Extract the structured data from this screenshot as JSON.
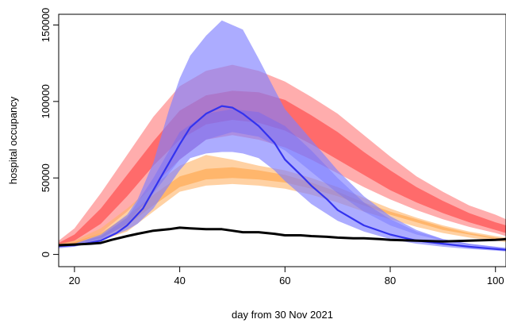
{
  "chart_data": {
    "type": "area",
    "title": "",
    "xlabel": "day from 30 Nov 2021",
    "ylabel": "hospital occupancy",
    "xlim": [
      17,
      102
    ],
    "ylim": [
      -8000,
      157000
    ],
    "xticks": [
      20,
      40,
      60,
      80,
      100
    ],
    "yticks": [
      0,
      50000,
      100000,
      150000
    ],
    "ytick_labels": [
      "0",
      "50000",
      "100000",
      "150000"
    ],
    "grid": false,
    "legend": "none",
    "series": [
      {
        "kind": "band",
        "color": "#ff9999",
        "opacity": 0.8,
        "x": [
          17,
          20,
          25,
          30,
          35,
          40,
          45,
          50,
          55,
          60,
          65,
          70,
          75,
          80,
          85,
          90,
          95,
          100,
          102
        ],
        "lower": [
          5000,
          7000,
          14000,
          28000,
          45000,
          62000,
          75000,
          78000,
          75000,
          70000,
          62000,
          53000,
          44000,
          36000,
          29000,
          23000,
          18000,
          14000,
          12000
        ],
        "upper": [
          9000,
          17000,
          40000,
          65000,
          90000,
          110000,
          120000,
          124000,
          120000,
          113000,
          103000,
          92000,
          78000,
          64000,
          51000,
          41000,
          32000,
          26000,
          23000
        ]
      },
      {
        "kind": "band",
        "color": "#ff5555",
        "opacity": 0.75,
        "x": [
          17,
          20,
          25,
          30,
          35,
          40,
          45,
          50,
          55,
          60,
          65,
          70,
          75,
          80,
          85,
          90,
          95,
          100,
          102
        ],
        "lower": [
          6000,
          9000,
          20000,
          38000,
          58000,
          75000,
          85000,
          88000,
          86000,
          81000,
          72000,
          62000,
          52000,
          42000,
          34000,
          27000,
          21000,
          16000,
          14000
        ],
        "upper": [
          7500,
          13000,
          30000,
          52000,
          74000,
          94000,
          104000,
          107000,
          106000,
          101000,
          91000,
          80000,
          67000,
          55000,
          44000,
          35000,
          27000,
          21000,
          19000
        ]
      },
      {
        "kind": "band",
        "color": "#ffb366",
        "opacity": 0.6,
        "x": [
          17,
          20,
          25,
          30,
          35,
          40,
          45,
          50,
          55,
          60,
          65,
          70,
          75,
          80,
          85,
          90,
          95,
          100,
          102
        ],
        "lower": [
          5000,
          6000,
          9000,
          15000,
          28000,
          41000,
          45000,
          46000,
          45000,
          43000,
          39000,
          34000,
          28000,
          23000,
          18000,
          14000,
          11000,
          9000,
          8000
        ],
        "upper": [
          7000,
          9000,
          17000,
          30000,
          45000,
          58000,
          65000,
          62000,
          58000,
          55000,
          50000,
          44000,
          37000,
          30000,
          24000,
          19000,
          15000,
          12000,
          11000
        ]
      },
      {
        "kind": "band",
        "color": "#ffa040",
        "opacity": 0.55,
        "x": [
          17,
          20,
          25,
          30,
          35,
          40,
          45,
          50,
          55,
          60,
          65,
          70,
          75,
          80,
          85,
          90,
          95,
          100,
          102
        ],
        "lower": [
          5500,
          7000,
          11000,
          19000,
          32000,
          44000,
          49000,
          50000,
          49000,
          47000,
          43000,
          38000,
          32000,
          26000,
          21000,
          16000,
          13000,
          10000,
          9000
        ],
        "upper": [
          6500,
          8000,
          14000,
          25000,
          39000,
          51000,
          56000,
          57000,
          55000,
          52000,
          47000,
          41000,
          34000,
          28000,
          23000,
          18000,
          14000,
          11000,
          10000
        ]
      },
      {
        "kind": "band",
        "color": "#8080ff",
        "opacity": 0.65,
        "x": [
          17,
          20,
          25,
          30,
          32,
          35,
          38,
          40,
          42,
          45,
          48,
          50,
          52,
          55,
          58,
          60,
          65,
          70,
          75,
          80,
          85,
          90,
          95,
          100,
          102
        ],
        "lower": [
          4000,
          5000,
          9000,
          16000,
          20000,
          30000,
          45000,
          55000,
          63000,
          66000,
          67000,
          67000,
          66000,
          63000,
          55000,
          48000,
          33000,
          22000,
          15000,
          10000,
          7000,
          5000,
          3500,
          2500,
          2000
        ],
        "upper": [
          6000,
          7000,
          13000,
          26000,
          36000,
          60000,
          95000,
          115000,
          130000,
          143000,
          153000,
          150000,
          147000,
          128000,
          108000,
          95000,
          75000,
          55000,
          38000,
          25000,
          16000,
          10000,
          7000,
          5000,
          4000
        ]
      },
      {
        "kind": "band",
        "color": "#6060ff",
        "opacity": 0.35,
        "x": [
          17,
          20,
          25,
          30,
          35,
          40,
          45,
          50,
          55,
          60,
          65,
          70,
          75,
          80,
          85,
          90,
          95,
          100,
          102
        ],
        "lower": [
          4500,
          6000,
          10000,
          20000,
          40000,
          62000,
          75000,
          80000,
          77000,
          68000,
          54000,
          40000,
          28000,
          19000,
          13000,
          9000,
          6000,
          4000,
          3500
        ],
        "upper": [
          5500,
          7000,
          12000,
          24000,
          50000,
          80000,
          92000,
          95000,
          93000,
          84000,
          68000,
          50000,
          34000,
          23000,
          15000,
          10000,
          7000,
          5000,
          4500
        ]
      },
      {
        "kind": "line",
        "color": "#3333ee",
        "x": [
          17,
          20,
          22,
          25,
          28,
          30,
          33,
          35,
          38,
          40,
          42,
          45,
          48,
          50,
          52,
          55,
          58,
          60,
          63,
          65,
          68,
          70,
          75,
          80,
          85,
          90,
          95,
          100,
          102
        ],
        "y": [
          5500,
          6000,
          7000,
          9000,
          14000,
          19000,
          30000,
          42000,
          60000,
          72000,
          83000,
          92000,
          97000,
          96000,
          92000,
          84000,
          73000,
          62000,
          52000,
          45000,
          36000,
          29000,
          19000,
          13000,
          9000,
          7000,
          5000,
          3500,
          3000
        ]
      },
      {
        "kind": "line",
        "color": "#000000",
        "x": [
          17,
          20,
          23,
          25,
          27,
          30,
          32,
          35,
          38,
          40,
          42,
          45,
          48,
          50,
          52,
          55,
          58,
          60,
          63,
          65,
          68,
          70,
          73,
          75,
          78,
          80,
          85,
          90,
          95,
          100,
          102
        ],
        "y": [
          6000,
          6500,
          7000,
          7500,
          9500,
          12000,
          13500,
          15500,
          16500,
          17500,
          17000,
          16500,
          16500,
          15500,
          14500,
          14500,
          13500,
          12500,
          12500,
          12000,
          11500,
          11000,
          10500,
          10500,
          10000,
          9500,
          9000,
          8500,
          9000,
          9500,
          10000
        ]
      }
    ]
  }
}
